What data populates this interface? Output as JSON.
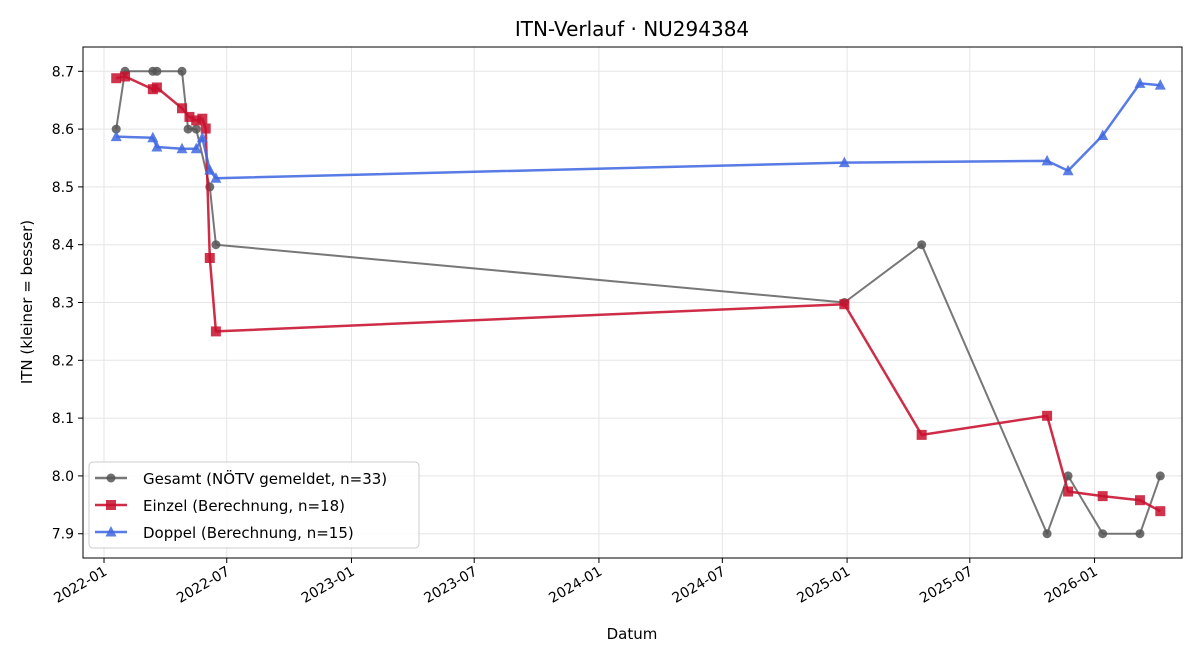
{
  "chart_data": {
    "type": "line",
    "title": "ITN-Verlauf · NU294384",
    "xlabel": "Datum",
    "ylabel": "ITN  (kleiner = besser)",
    "x_type": "date",
    "xlim": [
      "2021-12-01",
      "2026-05-10"
    ],
    "ylim": [
      7.858,
      8.742
    ],
    "x_ticks": [
      "2022-01-01",
      "2022-07-01",
      "2023-01-01",
      "2023-07-01",
      "2024-01-01",
      "2024-07-01",
      "2025-01-01",
      "2025-07-01",
      "2026-01-01"
    ],
    "x_tick_labels": [
      "2022-01",
      "2022-07",
      "2023-01",
      "2023-07",
      "2024-01",
      "2024-07",
      "2025-01",
      "2025-07",
      "2026-01"
    ],
    "y_ticks": [
      7.9,
      8.0,
      8.1,
      8.2,
      8.3,
      8.4,
      8.5,
      8.6,
      8.7
    ],
    "y_tick_labels": [
      "7.9",
      "8.0",
      "8.1",
      "8.2",
      "8.3",
      "8.4",
      "8.5",
      "8.6",
      "8.7"
    ],
    "grid": true,
    "legend_position": "lower-left",
    "series": [
      {
        "name": "Gesamt (NÖTV gemeldet, n=33)",
        "color": "#555555",
        "marker": "circle",
        "points": [
          {
            "x": "2022-01-19",
            "y": 8.6
          },
          {
            "x": "2022-02-01",
            "y": 8.7
          },
          {
            "x": "2022-03-14",
            "y": 8.7
          },
          {
            "x": "2022-03-20",
            "y": 8.7
          },
          {
            "x": "2022-04-26",
            "y": 8.7
          },
          {
            "x": "2022-05-05",
            "y": 8.6
          },
          {
            "x": "2022-05-17",
            "y": 8.6
          },
          {
            "x": "2022-06-06",
            "y": 8.5
          },
          {
            "x": "2022-06-15",
            "y": 8.4
          },
          {
            "x": "2024-12-28",
            "y": 8.3
          },
          {
            "x": "2025-04-21",
            "y": 8.4
          },
          {
            "x": "2025-10-23",
            "y": 7.9
          },
          {
            "x": "2025-11-23",
            "y": 8.0
          },
          {
            "x": "2026-01-13",
            "y": 7.9
          },
          {
            "x": "2026-03-09",
            "y": 7.9
          },
          {
            "x": "2026-04-08",
            "y": 8.0
          }
        ]
      },
      {
        "name": "Einzel (Berechnung, n=18)",
        "color": "#c8102e",
        "marker": "square",
        "points": [
          {
            "x": "2022-01-19",
            "y": 8.688
          },
          {
            "x": "2022-02-01",
            "y": 8.691
          },
          {
            "x": "2022-03-14",
            "y": 8.669
          },
          {
            "x": "2022-03-20",
            "y": 8.672
          },
          {
            "x": "2022-04-26",
            "y": 8.636
          },
          {
            "x": "2022-05-07",
            "y": 8.621
          },
          {
            "x": "2022-05-17",
            "y": 8.615
          },
          {
            "x": "2022-05-26",
            "y": 8.618
          },
          {
            "x": "2022-05-31",
            "y": 8.601
          },
          {
            "x": "2022-06-06",
            "y": 8.377
          },
          {
            "x": "2022-06-15",
            "y": 8.25
          },
          {
            "x": "2024-12-28",
            "y": 8.297
          },
          {
            "x": "2025-04-21",
            "y": 8.071
          },
          {
            "x": "2025-10-23",
            "y": 8.104
          },
          {
            "x": "2025-11-23",
            "y": 7.973
          },
          {
            "x": "2026-01-13",
            "y": 7.965
          },
          {
            "x": "2026-03-09",
            "y": 7.958
          },
          {
            "x": "2026-04-08",
            "y": 7.939
          }
        ]
      },
      {
        "name": "Doppel (Berechnung, n=15)",
        "color": "#4169e1",
        "marker": "triangle",
        "points": [
          {
            "x": "2022-01-19",
            "y": 8.587
          },
          {
            "x": "2022-03-14",
            "y": 8.585
          },
          {
            "x": "2022-03-20",
            "y": 8.569
          },
          {
            "x": "2022-04-26",
            "y": 8.566
          },
          {
            "x": "2022-05-17",
            "y": 8.566
          },
          {
            "x": "2022-05-26",
            "y": 8.585
          },
          {
            "x": "2022-06-06",
            "y": 8.529
          },
          {
            "x": "2022-06-15",
            "y": 8.515
          },
          {
            "x": "2024-12-28",
            "y": 8.542
          },
          {
            "x": "2025-10-23",
            "y": 8.545
          },
          {
            "x": "2025-11-23",
            "y": 8.528
          },
          {
            "x": "2026-01-13",
            "y": 8.589
          },
          {
            "x": "2026-03-09",
            "y": 8.679
          },
          {
            "x": "2026-04-08",
            "y": 8.676
          }
        ]
      }
    ]
  }
}
